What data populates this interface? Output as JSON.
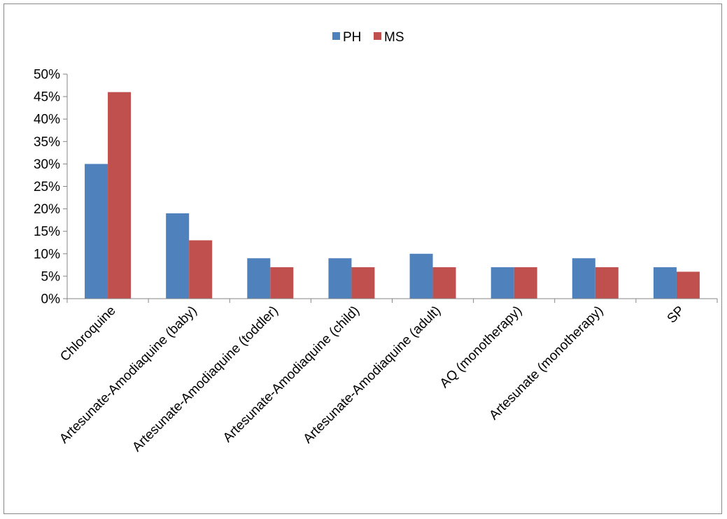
{
  "chart_data": {
    "type": "bar",
    "categories": [
      "Chloroquine",
      "Artesunate-Amodiaquine (baby)",
      "Artesunate-Amodiaquine (toddler)",
      "Artesunate-Amodiaquine (child)",
      "Artesunate-Amodiaquine (adult)",
      "AQ (monotherapy)",
      "Artesunate (monotherapy)",
      "SP"
    ],
    "series": [
      {
        "name": "PH",
        "color": "#4F81BD",
        "values": [
          30,
          19,
          9,
          9,
          10,
          7,
          9,
          7
        ]
      },
      {
        "name": "MS",
        "color": "#C0504D",
        "values": [
          46,
          13,
          7,
          7,
          7,
          7,
          7,
          6
        ]
      }
    ],
    "yticks": [
      "0%",
      "5%",
      "10%",
      "15%",
      "20%",
      "25%",
      "30%",
      "35%",
      "40%",
      "45%",
      "50%"
    ],
    "ylim": [
      0,
      50
    ],
    "legend_position": "top",
    "grid": false
  }
}
